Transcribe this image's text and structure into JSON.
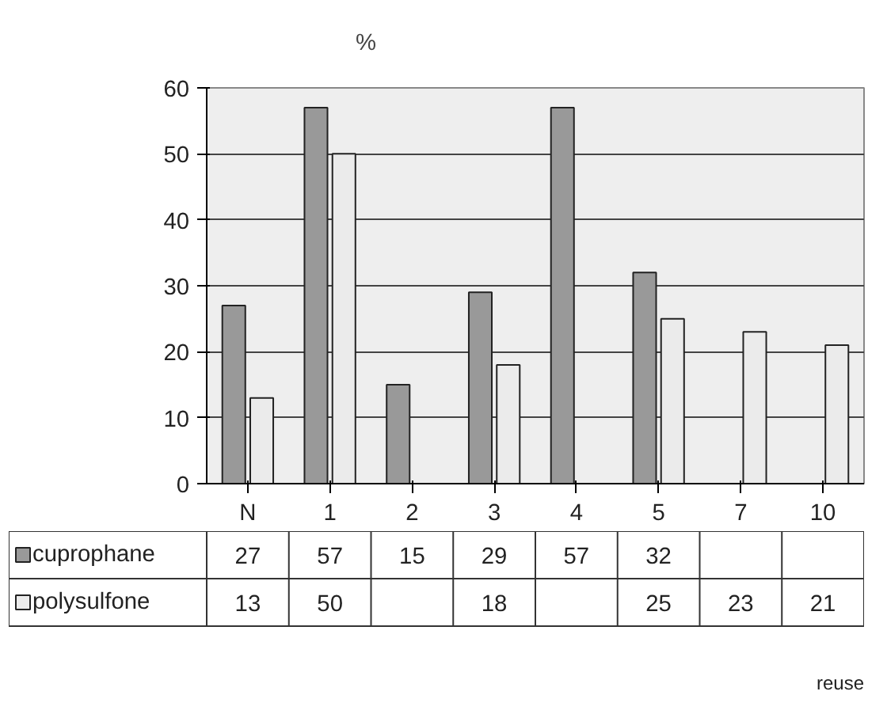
{
  "chart_data": {
    "type": "bar",
    "ylabel": "%",
    "annotations": [
      "reuse"
    ],
    "categories": [
      "N",
      "1",
      "2",
      "3",
      "4",
      "5",
      "7",
      "10"
    ],
    "series": [
      {
        "name": "cuprophane",
        "color": "#999999",
        "values": [
          27,
          57,
          15,
          29,
          57,
          32,
          null,
          null
        ]
      },
      {
        "name": "polysulfone",
        "color": "#ebebeb",
        "values": [
          13,
          50,
          null,
          18,
          null,
          25,
          23,
          21
        ]
      }
    ],
    "ylim": [
      0,
      60
    ],
    "yticks": [
      0,
      10,
      20,
      30,
      40,
      50,
      60
    ],
    "grid": "y",
    "legend": "bottom",
    "data_labels": true
  }
}
